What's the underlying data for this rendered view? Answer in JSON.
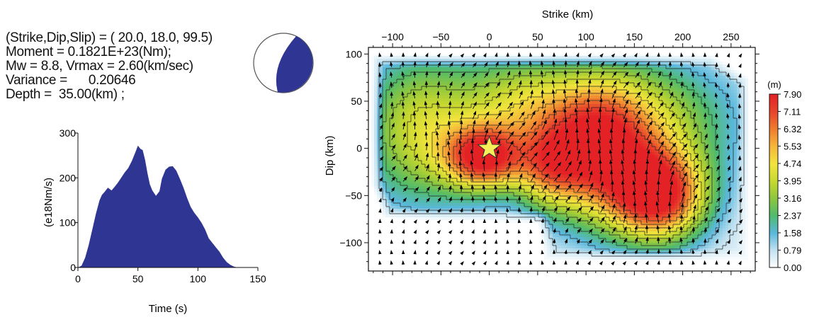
{
  "source_parameters": {
    "line1": "(Strike,Dip,Slip) = ( 20.0, 18.0, 99.5)",
    "line2": "Moment = 0.1821E+23(Nm);",
    "line3": "Mw = 8.8, Vrmax = 2.60(km/sec)",
    "line4": "Variance =      0.20646",
    "line5": "Depth =  35.00(km) ;"
  },
  "beachball": {
    "fill_color": "#2f3593",
    "outline_color": "#555555"
  },
  "chart_data": [
    {
      "type": "area",
      "name": "moment-rate-function",
      "xlabel": "Time (s)",
      "ylabel": "(e18Nm/s)",
      "xlim": [
        0,
        150
      ],
      "ylim": [
        0,
        300
      ],
      "xticks": [
        0,
        50,
        100,
        150
      ],
      "yticks": [
        0,
        100,
        200,
        300
      ],
      "fill_color": "#2f3593",
      "x": [
        0,
        3,
        6,
        9,
        12,
        15,
        18,
        20,
        22,
        25,
        28,
        30,
        33,
        36,
        39,
        42,
        45,
        48,
        50,
        52,
        54,
        56,
        58,
        60,
        62,
        65,
        68,
        70,
        73,
        76,
        79,
        82,
        85,
        88,
        91,
        94,
        97,
        100,
        103,
        106,
        109,
        112,
        115,
        118,
        121,
        124,
        127,
        130,
        133
      ],
      "y": [
        0,
        4,
        22,
        50,
        85,
        120,
        150,
        162,
        168,
        178,
        172,
        178,
        188,
        200,
        212,
        222,
        238,
        258,
        272,
        265,
        262,
        240,
        210,
        185,
        172,
        160,
        170,
        198,
        218,
        225,
        226,
        216,
        198,
        178,
        155,
        135,
        122,
        112,
        100,
        85,
        65,
        55,
        45,
        35,
        22,
        12,
        6,
        2,
        0
      ]
    },
    {
      "type": "heatmap",
      "name": "slip-distribution",
      "title": "Strike (km)",
      "xlabel": "Strike (km)",
      "ylabel": "Dip (km)",
      "xlim": [
        -125,
        275
      ],
      "ylim": [
        -130,
        107
      ],
      "xticks": [
        -100,
        -50,
        0,
        50,
        100,
        150,
        200,
        250
      ],
      "yticks": [
        -100,
        -50,
        0,
        50,
        100
      ],
      "grid": false,
      "colorbar": {
        "unit_label": "(m)",
        "ticks": [
          "0.00",
          "0.79",
          "1.58",
          "2.37",
          "3.16",
          "3.95",
          "4.74",
          "5.53",
          "6.32",
          "7.11",
          "7.90"
        ],
        "colors": [
          "#ffffff",
          "#c4e2f0",
          "#5ab8dc",
          "#4fbb6e",
          "#8cc63f",
          "#c7d82f",
          "#f2e43c",
          "#f5b73b",
          "#ef7d2e",
          "#e8452b",
          "#e42226"
        ]
      },
      "max_slip": 7.9,
      "fault_polygon": [
        [
          -122,
          100
        ],
        [
          230,
          100
        ],
        [
          270,
          75
        ],
        [
          270,
          -120
        ],
        [
          55,
          -120
        ],
        [
          55,
          -108
        ],
        [
          50,
          -80
        ],
        [
          -110,
          -75
        ],
        [
          -122,
          -40
        ]
      ],
      "slip_peaks": [
        {
          "strike": -5,
          "dip": -10,
          "amplitude": 6.6,
          "sigma_strike": 28,
          "sigma_dip": 24
        },
        {
          "strike": 175,
          "dip": -50,
          "amplitude": 7.6,
          "sigma_strike": 35,
          "sigma_dip": 34
        },
        {
          "strike": 110,
          "dip": -5,
          "amplitude": 5.6,
          "sigma_strike": 38,
          "sigma_dip": 50
        },
        {
          "strike": 150,
          "dip": 30,
          "amplitude": 3.5,
          "sigma_strike": 70,
          "sigma_dip": 45
        },
        {
          "strike": -70,
          "dip": 20,
          "amplitude": 3.8,
          "sigma_strike": 45,
          "sigma_dip": 55
        },
        {
          "strike": 30,
          "dip": 50,
          "amplitude": 2.8,
          "sigma_strike": 40,
          "sigma_dip": 35
        },
        {
          "strike": 60,
          "dip": -20,
          "amplitude": 3.6,
          "sigma_strike": 25,
          "sigma_dip": 30
        }
      ],
      "hypocenter": {
        "strike": 0,
        "dip": 0,
        "marker": "star",
        "color": "#f7ef5a"
      }
    }
  ]
}
